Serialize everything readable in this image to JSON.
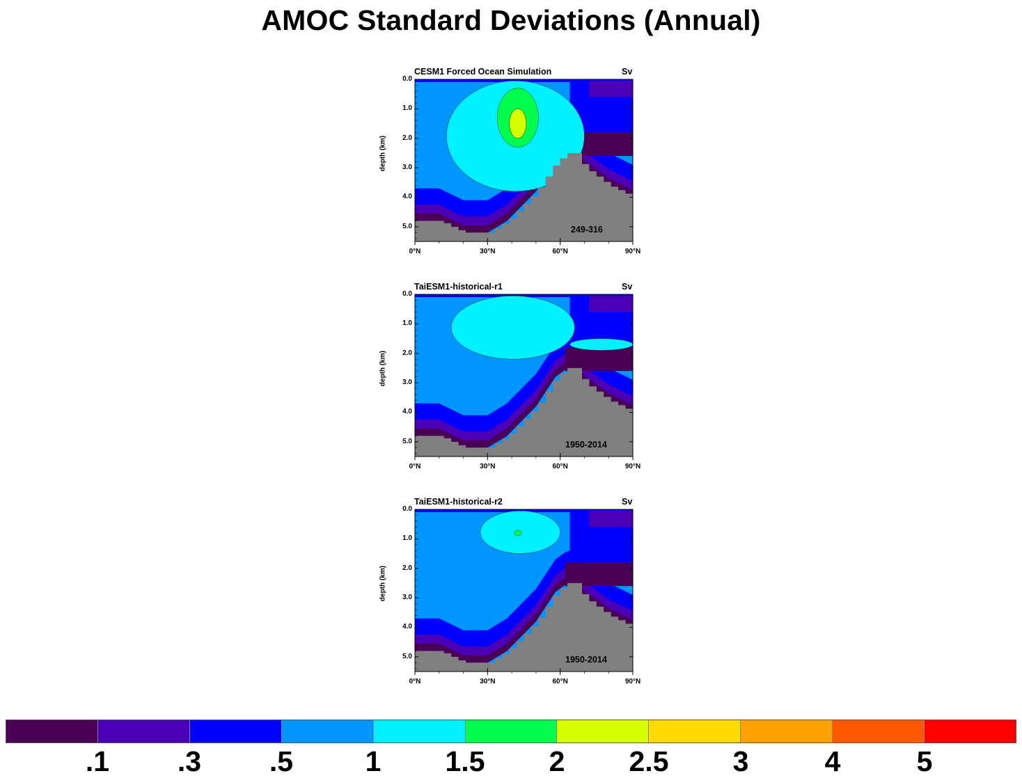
{
  "title": "AMOC Standard Deviations (Annual)",
  "units": "Sv",
  "colors": {
    "levels": [
      "#4a0055",
      "#4b00b7",
      "#0000ff",
      "#0096ff",
      "#00f0ff",
      "#00ff4d",
      "#d8ff00",
      "#ffda00",
      "#ffa100",
      "#ff5900",
      "#ff0000"
    ],
    "land": "#808080"
  },
  "chart_data": [
    {
      "type": "heatmap",
      "title": "CESM1 Forced Ocean Simulation",
      "units": "Sv",
      "years": "249-316",
      "ylabel": "depth (km)",
      "xticks": [
        "0°N",
        "30°N",
        "60°N",
        "90°N"
      ],
      "yticks": [
        "0.0",
        "1.0",
        "2.0",
        "3.0",
        "4.0",
        "5.0"
      ],
      "xlim": [
        0,
        90
      ],
      "ylim": [
        0,
        5.5
      ],
      "peak_value_sv": 2.0,
      "bottom_depth_km": [
        [
          0,
          4.8
        ],
        [
          10,
          4.8
        ],
        [
          20,
          5.2
        ],
        [
          30,
          5.2
        ],
        [
          38,
          4.8
        ],
        [
          50,
          3.8
        ],
        [
          58,
          2.8
        ],
        [
          63,
          2.5
        ],
        [
          66,
          2.5
        ],
        [
          70,
          3.0
        ],
        [
          80,
          3.6
        ],
        [
          90,
          4.0
        ]
      ],
      "regions": [
        {
          "level": 4,
          "min_lat": 13,
          "max_lat": 70,
          "top_km": 0.05,
          "bottom_km": 3.8
        },
        {
          "level": 5,
          "min_lat": 34,
          "max_lat": 51,
          "top_km": 0.3,
          "bottom_km": 2.3
        },
        {
          "level": 6,
          "min_lat": 39,
          "max_lat": 46,
          "top_km": 1.0,
          "bottom_km": 2.0
        }
      ]
    },
    {
      "type": "heatmap",
      "title": "TaiESM1-historical-r1",
      "units": "Sv",
      "years": "1950-2014",
      "ylabel": "depth (km)",
      "xticks": [
        "0°N",
        "30°N",
        "60°N",
        "90°N"
      ],
      "yticks": [
        "0.0",
        "1.0",
        "2.0",
        "3.0",
        "4.0",
        "5.0"
      ],
      "xlim": [
        0,
        90
      ],
      "ylim": [
        0,
        5.5
      ],
      "peak_value_sv": 1.5,
      "bottom_depth_km": [
        [
          0,
          4.8
        ],
        [
          10,
          4.8
        ],
        [
          20,
          5.2
        ],
        [
          30,
          5.2
        ],
        [
          38,
          4.8
        ],
        [
          50,
          3.8
        ],
        [
          58,
          2.8
        ],
        [
          63,
          2.5
        ],
        [
          66,
          2.5
        ],
        [
          70,
          3.0
        ],
        [
          80,
          3.6
        ],
        [
          90,
          4.0
        ]
      ],
      "regions": [
        {
          "level": 4,
          "min_lat": 15,
          "max_lat": 66,
          "top_km": 0.05,
          "bottom_km": 2.2
        },
        {
          "level": 4,
          "min_lat": 64,
          "max_lat": 90,
          "top_km": 1.5,
          "bottom_km": 1.9
        }
      ]
    },
    {
      "type": "heatmap",
      "title": "TaiESM1-historical-r2",
      "units": "Sv",
      "years": "1950-2014",
      "ylabel": "depth (km)",
      "xticks": [
        "0°N",
        "30°N",
        "60°N",
        "90°N"
      ],
      "yticks": [
        "0.0",
        "1.0",
        "2.0",
        "3.0",
        "4.0",
        "5.0"
      ],
      "xlim": [
        0,
        90
      ],
      "ylim": [
        0,
        5.5
      ],
      "peak_value_sv": 2.0,
      "bottom_depth_km": [
        [
          0,
          4.8
        ],
        [
          10,
          4.8
        ],
        [
          20,
          5.2
        ],
        [
          30,
          5.2
        ],
        [
          38,
          4.8
        ],
        [
          50,
          3.8
        ],
        [
          58,
          2.8
        ],
        [
          63,
          2.5
        ],
        [
          66,
          2.5
        ],
        [
          70,
          3.0
        ],
        [
          80,
          3.6
        ],
        [
          90,
          4.0
        ]
      ],
      "regions": [
        {
          "level": 4,
          "min_lat": 27,
          "max_lat": 60,
          "top_km": 0.05,
          "bottom_km": 1.5
        },
        {
          "level": 5,
          "min_lat": 41,
          "max_lat": 44,
          "top_km": 0.8,
          "bottom_km": 0.8
        }
      ]
    }
  ],
  "colorbar": {
    "labels": [
      ".1",
      ".3",
      ".5",
      "1",
      "1.5",
      "2",
      "2.5",
      "3",
      "4",
      "5"
    ]
  }
}
